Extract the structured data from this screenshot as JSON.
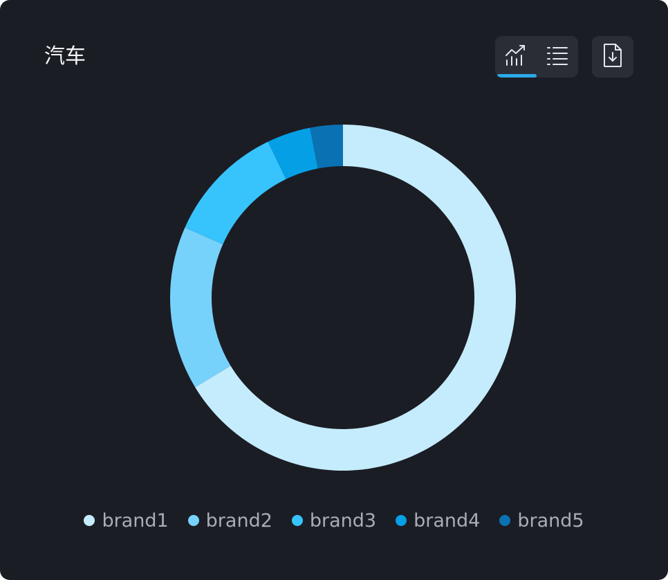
{
  "header": {
    "title": "汽车"
  },
  "toolbar": {
    "chart_view_icon": "chart-trend-icon",
    "list_view_icon": "list-icon",
    "export_icon": "file-download-icon",
    "active_view": "chart",
    "accent_color": "#2aa9ea"
  },
  "chart_data": {
    "type": "pie",
    "variant": "donut",
    "categories": [
      "brand1",
      "brand2",
      "brand3",
      "brand4",
      "brand5"
    ],
    "values": [
      65,
      15,
      11,
      4,
      3
    ],
    "colors": [
      "#c5ecfd",
      "#77d2fb",
      "#37c3fb",
      "#059fe6",
      "#0a72b3"
    ],
    "legend_position": "bottom",
    "start_angle": "top, clockwise"
  }
}
